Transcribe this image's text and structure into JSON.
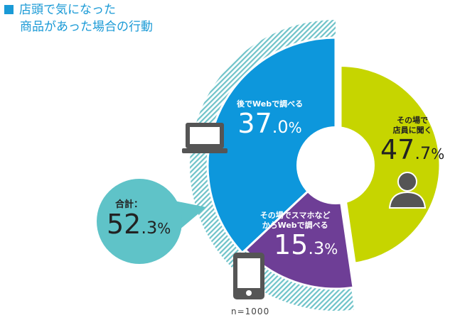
{
  "title_line1": "店頭で気になった",
  "title_line2": "商品があった場合の行動",
  "chart_data": {
    "type": "pie",
    "title": "店頭で気になった商品があった場合の行動",
    "slices": [
      {
        "label": "その場で店員に聞く",
        "label_line1": "その場で",
        "label_line2": "店員に聞く",
        "value": 47.7,
        "int": "47",
        "dec": ".7",
        "unit": "%",
        "color": "#c6d500",
        "icon": "person-icon"
      },
      {
        "label": "その場でスマホなどからWebで調べる",
        "label_line1": "その場でスマホなど",
        "label_line2": "からWebで調べる",
        "value": 15.3,
        "int": "15",
        "dec": ".3",
        "unit": "%",
        "color": "#6e3e96",
        "icon": "tablet-icon"
      },
      {
        "label": "後でWebで調べる",
        "label_line1": "後でWebで調べる",
        "value": 37.0,
        "int": "37",
        "dec": ".0",
        "unit": "%",
        "color": "#0d97dc",
        "icon": "laptop-icon"
      }
    ],
    "total": {
      "label": "合計：",
      "value": 52.3,
      "int": "52",
      "dec": ".3",
      "unit": "%",
      "color": "#5fc3c8"
    },
    "note": "n=1000"
  }
}
